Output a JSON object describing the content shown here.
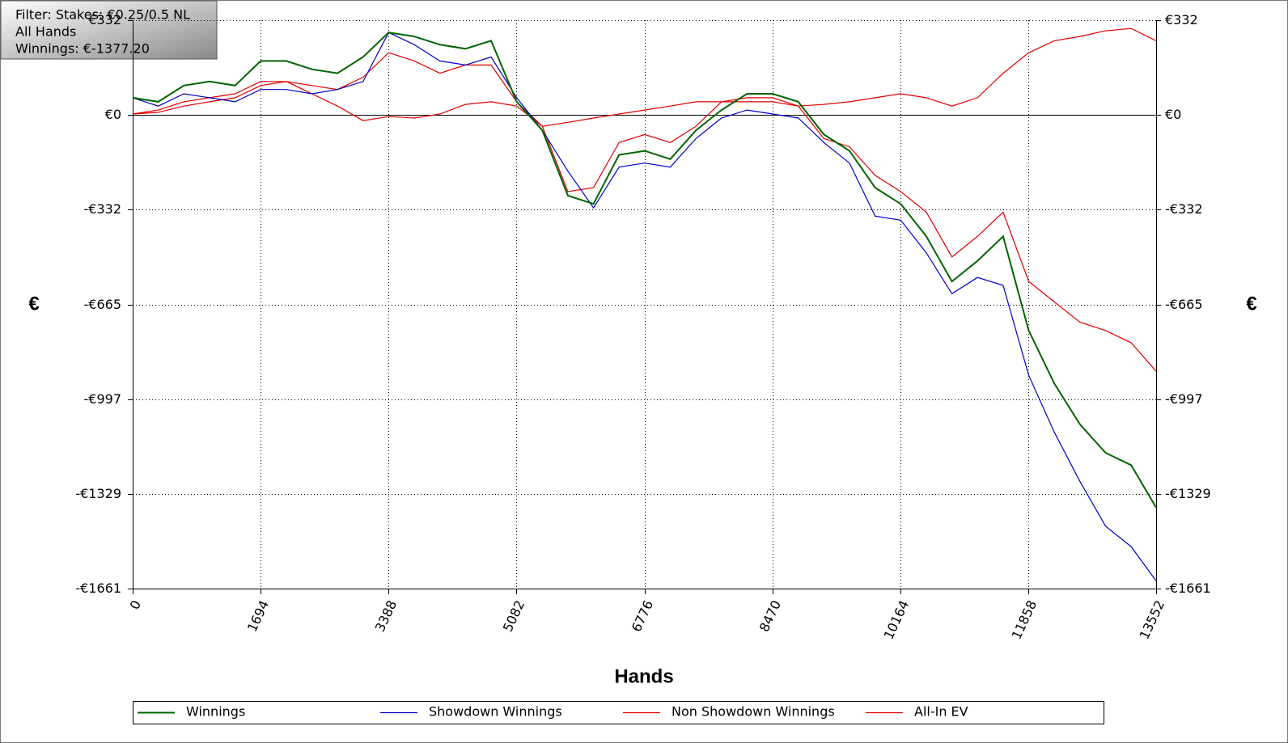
{
  "chart_data": {
    "type": "line",
    "filter": [
      "Filter: Stakes: €0.25/0.5 NL",
      "All Hands",
      "Winnings: €-1377.20"
    ],
    "xlabel": "Hands",
    "ylabel": "€",
    "y2label": "€",
    "x": [
      0,
      339,
      678,
      1017,
      1356,
      1695,
      2034,
      2373,
      2712,
      3051,
      3390,
      3729,
      4068,
      4407,
      4746,
      5085,
      5424,
      5763,
      6102,
      6441,
      6780,
      7119,
      7458,
      7797,
      8136,
      8475,
      8814,
      9153,
      9492,
      9831,
      10170,
      10509,
      10848,
      11187,
      11526,
      11865,
      12204,
      12543,
      12882,
      13221,
      13552
    ],
    "series": [
      {
        "name": "Winnings",
        "color": "#006400",
        "values": [
          60,
          46,
          103,
          117,
          103,
          189,
          189,
          160,
          146,
          203,
          289,
          275,
          246,
          232,
          260,
          46,
          -54,
          -283,
          -312,
          -140,
          -126,
          -155,
          -54,
          17,
          74,
          74,
          46,
          -69,
          -126,
          -255,
          -312,
          -426,
          -584,
          -512,
          -426,
          -756,
          -942,
          -1085,
          -1185,
          -1228,
          -1377
        ]
      },
      {
        "name": "Showdown Winnings",
        "color": "#0000cd",
        "values": [
          60,
          31,
          74,
          60,
          46,
          89,
          89,
          74,
          89,
          117,
          289,
          246,
          189,
          175,
          203,
          60,
          -54,
          -197,
          -326,
          -183,
          -169,
          -183,
          -83,
          -11,
          17,
          3,
          -11,
          -97,
          -169,
          -355,
          -369,
          -484,
          -627,
          -570,
          -598,
          -913,
          -1113,
          -1285,
          -1442,
          -1514,
          -1634
        ]
      },
      {
        "name": "Non Showdown Winnings",
        "color": "#e00000",
        "values": [
          3,
          9,
          31,
          46,
          60,
          103,
          117,
          74,
          31,
          -20,
          -6,
          -11,
          3,
          37,
          46,
          31,
          -40,
          -26,
          -11,
          3,
          17,
          31,
          46,
          46,
          46,
          46,
          31,
          37,
          46,
          60,
          74,
          60,
          31,
          60,
          146,
          218,
          260,
          275,
          295,
          303,
          260
        ]
      },
      {
        "name": "All-In EV",
        "color": "#e00000",
        "values": [
          3,
          17,
          46,
          60,
          74,
          117,
          117,
          103,
          89,
          132,
          218,
          189,
          146,
          175,
          175,
          46,
          -40,
          -269,
          -255,
          -97,
          -69,
          -97,
          -40,
          46,
          60,
          60,
          31,
          -83,
          -112,
          -212,
          -269,
          -341,
          -498,
          -426,
          -341,
          -584,
          -656,
          -727,
          -756,
          -799,
          -899
        ]
      }
    ],
    "xlim": [
      0,
      13552
    ],
    "xticks": [
      0,
      1694,
      3388,
      5082,
      6776,
      8470,
      10164,
      11858,
      13552
    ],
    "ylim": [
      -1661,
      332
    ],
    "yticks": [
      {
        "value": 332,
        "label": "€332"
      },
      {
        "value": 0,
        "label": "€0"
      },
      {
        "value": -332,
        "label": "-€332"
      },
      {
        "value": -665,
        "label": "-€665"
      },
      {
        "value": -997,
        "label": "-€997"
      },
      {
        "value": -1329,
        "label": "-€1329"
      },
      {
        "value": -1661,
        "label": "-€1661"
      }
    ],
    "y2ticks": [
      {
        "value": 332,
        "label": "€332"
      },
      {
        "value": 0,
        "label": "€0"
      },
      {
        "value": -332,
        "label": "-€332"
      },
      {
        "value": -665,
        "label": "-€665"
      },
      {
        "value": -997,
        "label": "-€997"
      },
      {
        "value": -1329,
        "label": "-€1329"
      },
      {
        "value": -1661,
        "label": "-€1661"
      }
    ],
    "grid": true
  }
}
